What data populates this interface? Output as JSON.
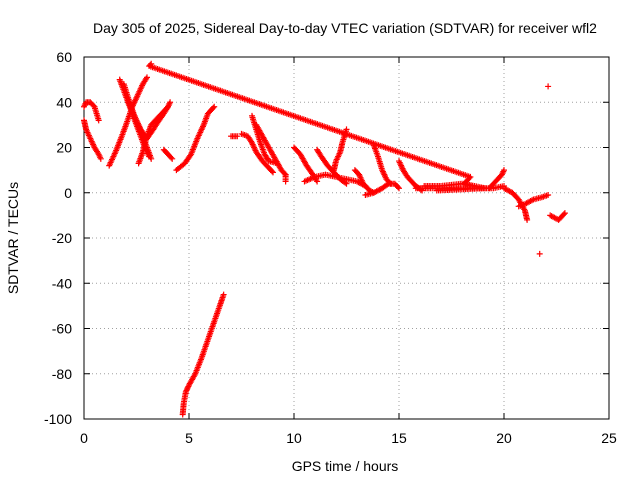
{
  "chart_data": {
    "type": "scatter",
    "title": "Day 305 of 2025, Sidereal Day-to-day VTEC variation (SDTVAR) for receiver wfl2",
    "xlabel": "GPS time / hours",
    "ylabel": "SDTVAR / TECUs",
    "xlim": [
      0,
      25
    ],
    "ylim": [
      -100,
      60
    ],
    "xticks": [
      "0",
      "5",
      "10",
      "15",
      "20",
      "25"
    ],
    "yticks": [
      "-100",
      "-80",
      "-60",
      "-40",
      "-20",
      "0",
      "20",
      "40",
      "60"
    ],
    "grid": true,
    "marker": "plus",
    "color": "#ff0000",
    "tracks": [
      [
        [
          0.0,
          32
        ],
        [
          0.1,
          28
        ],
        [
          0.3,
          24
        ],
        [
          0.5,
          20
        ],
        [
          0.7,
          17
        ],
        [
          0.8,
          15
        ]
      ],
      [
        [
          0.0,
          38
        ],
        [
          0.1,
          40
        ],
        [
          0.3,
          40
        ],
        [
          0.5,
          38
        ],
        [
          0.6,
          35
        ],
        [
          0.7,
          32
        ]
      ],
      [
        [
          1.2,
          12
        ],
        [
          1.5,
          18
        ],
        [
          1.8,
          25
        ],
        [
          2.0,
          30
        ],
        [
          2.3,
          38
        ],
        [
          2.6,
          44
        ],
        [
          2.8,
          48
        ],
        [
          3.0,
          51
        ]
      ],
      [
        [
          1.7,
          50
        ],
        [
          1.9,
          45
        ],
        [
          2.1,
          40
        ],
        [
          2.3,
          35
        ],
        [
          2.5,
          30
        ],
        [
          2.7,
          25
        ],
        [
          2.9,
          20
        ],
        [
          3.1,
          16
        ]
      ],
      [
        [
          1.9,
          48
        ],
        [
          2.1,
          42
        ],
        [
          2.4,
          34
        ],
        [
          2.7,
          27
        ],
        [
          3.0,
          20
        ],
        [
          3.2,
          15
        ]
      ],
      [
        [
          2.1,
          40
        ],
        [
          2.4,
          34
        ],
        [
          2.7,
          28
        ],
        [
          3.0,
          24
        ],
        [
          3.3,
          28
        ],
        [
          3.5,
          31
        ],
        [
          3.8,
          35
        ],
        [
          4.0,
          38
        ],
        [
          4.1,
          40
        ]
      ],
      [
        [
          2.6,
          13
        ],
        [
          2.8,
          18
        ],
        [
          3.0,
          25
        ],
        [
          3.2,
          30
        ],
        [
          3.5,
          33
        ],
        [
          3.8,
          36
        ],
        [
          4.0,
          38
        ]
      ],
      [
        [
          3.8,
          19
        ],
        [
          4.0,
          17
        ],
        [
          4.2,
          15
        ]
      ],
      [
        [
          4.4,
          10
        ],
        [
          4.8,
          13
        ],
        [
          5.1,
          17
        ],
        [
          5.4,
          24
        ],
        [
          5.7,
          30
        ],
        [
          5.9,
          35
        ],
        [
          6.1,
          37
        ],
        [
          6.2,
          38
        ]
      ],
      [
        [
          4.7,
          -98
        ],
        [
          4.75,
          -93
        ],
        [
          4.85,
          -88
        ],
        [
          5.0,
          -85
        ],
        [
          5.3,
          -80
        ],
        [
          5.6,
          -73
        ],
        [
          5.9,
          -65
        ],
        [
          6.2,
          -57
        ],
        [
          6.5,
          -49
        ],
        [
          6.65,
          -45
        ]
      ],
      [
        [
          7.0,
          25
        ],
        [
          7.3,
          25
        ]
      ],
      [
        [
          7.5,
          26
        ],
        [
          7.8,
          25
        ],
        [
          8.0,
          22
        ],
        [
          8.2,
          18
        ],
        [
          8.5,
          14
        ],
        [
          8.8,
          11
        ],
        [
          9.0,
          9
        ]
      ],
      [
        [
          8.0,
          34
        ],
        [
          8.2,
          28
        ],
        [
          8.4,
          22
        ],
        [
          8.6,
          17
        ],
        [
          8.8,
          14
        ],
        [
          9.2,
          13
        ]
      ],
      [
        [
          8.2,
          30
        ],
        [
          8.5,
          25
        ],
        [
          8.8,
          20
        ],
        [
          9.1,
          15
        ],
        [
          9.4,
          10
        ],
        [
          9.6,
          8
        ]
      ],
      [
        [
          9.6,
          8
        ],
        [
          9.6,
          5
        ]
      ],
      [
        [
          10.0,
          20
        ],
        [
          10.3,
          17
        ],
        [
          10.6,
          12
        ],
        [
          10.9,
          8
        ],
        [
          11.1,
          5
        ]
      ],
      [
        [
          10.5,
          5
        ],
        [
          11.0,
          7
        ],
        [
          11.5,
          8
        ],
        [
          12.0,
          7
        ],
        [
          12.5,
          6
        ],
        [
          13.0,
          5
        ],
        [
          13.4,
          3
        ]
      ],
      [
        [
          11.1,
          19
        ],
        [
          11.3,
          16
        ],
        [
          11.6,
          12
        ],
        [
          11.9,
          9
        ],
        [
          12.2,
          6
        ],
        [
          12.5,
          4
        ]
      ],
      [
        [
          11.9,
          10
        ],
        [
          12.0,
          14
        ],
        [
          12.2,
          18
        ],
        [
          12.3,
          22
        ],
        [
          12.5,
          28
        ]
      ],
      [
        [
          12.9,
          10
        ],
        [
          13.1,
          8
        ],
        [
          13.3,
          4
        ],
        [
          13.6,
          1
        ],
        [
          13.8,
          0
        ]
      ],
      [
        [
          13.4,
          -1
        ],
        [
          13.8,
          0
        ],
        [
          14.2,
          2
        ],
        [
          14.5,
          4
        ],
        [
          14.8,
          4
        ],
        [
          15.0,
          2
        ]
      ],
      [
        [
          13.8,
          21
        ],
        [
          14.0,
          16
        ],
        [
          14.2,
          10
        ],
        [
          14.4,
          6
        ],
        [
          14.6,
          4
        ]
      ],
      [
        [
          15.0,
          14
        ],
        [
          15.2,
          10
        ],
        [
          15.4,
          7
        ],
        [
          15.6,
          5
        ],
        [
          15.8,
          3
        ],
        [
          16.1,
          1
        ]
      ],
      [
        [
          15.8,
          2
        ],
        [
          16.5,
          2
        ],
        [
          17.5,
          2
        ],
        [
          18.5,
          2
        ],
        [
          19.5,
          2
        ],
        [
          20.0,
          3
        ]
      ],
      [
        [
          16.2,
          3
        ],
        [
          17.0,
          3
        ],
        [
          18.0,
          4
        ],
        [
          18.5,
          3
        ]
      ],
      [
        [
          19.3,
          2
        ],
        [
          19.6,
          5
        ],
        [
          19.9,
          8
        ],
        [
          20.0,
          10
        ]
      ],
      [
        [
          20.0,
          2
        ],
        [
          20.4,
          0
        ],
        [
          20.7,
          -3
        ],
        [
          21.0,
          -8
        ],
        [
          21.1,
          -12
        ]
      ],
      [
        [
          20.7,
          -6
        ],
        [
          21.0,
          -5
        ],
        [
          21.4,
          -3
        ],
        [
          21.8,
          -2
        ],
        [
          22.1,
          -1
        ]
      ],
      [
        [
          21.7,
          -27
        ]
      ],
      [
        [
          22.1,
          47
        ]
      ],
      [
        [
          22.2,
          -10
        ],
        [
          22.4,
          -11
        ],
        [
          22.6,
          -12
        ],
        [
          22.8,
          -10
        ],
        [
          22.9,
          -9
        ]
      ],
      [
        [
          3.2,
          57
        ],
        [
          3.1,
          56
        ],
        [
          18.4,
          7
        ],
        [
          18.1,
          4
        ],
        [
          19.1,
          2
        ],
        [
          16.8,
          1
        ]
      ]
    ]
  }
}
